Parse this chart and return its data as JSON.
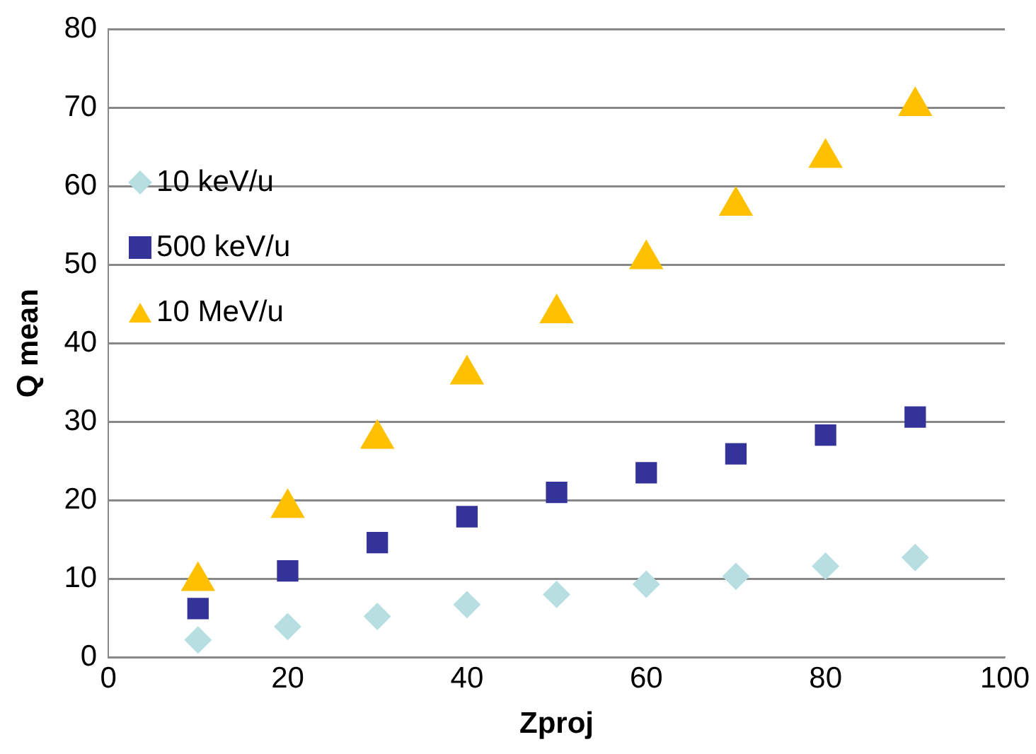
{
  "chart_data": {
    "type": "scatter",
    "xlabel": "Zproj",
    "ylabel": "Q mean",
    "x": [
      10,
      20,
      30,
      40,
      50,
      60,
      70,
      80,
      90
    ],
    "series": [
      {
        "name": "10 keV/u",
        "color": "#b7dee0",
        "marker": "diamond",
        "values": [
          2.2,
          3.9,
          5.2,
          6.7,
          8.0,
          9.3,
          10.3,
          11.6,
          12.7
        ]
      },
      {
        "name": "500 keV/u",
        "color": "#333399",
        "marker": "square",
        "values": [
          6.2,
          11.0,
          14.6,
          17.9,
          21.0,
          23.5,
          25.9,
          28.3,
          30.6
        ]
      },
      {
        "name": "10 MeV/u",
        "color": "#ffc000",
        "marker": "triangle",
        "values": [
          9.7,
          19.0,
          27.8,
          36.0,
          43.8,
          50.7,
          57.5,
          63.6,
          70.2
        ]
      }
    ],
    "xlim": [
      0,
      100
    ],
    "xticks": [
      0,
      20,
      40,
      60,
      80,
      100
    ],
    "ylim": [
      0,
      80
    ],
    "yticks": [
      0,
      10,
      20,
      30,
      40,
      50,
      60,
      70,
      80
    ],
    "grid": "y",
    "legend": "left"
  }
}
